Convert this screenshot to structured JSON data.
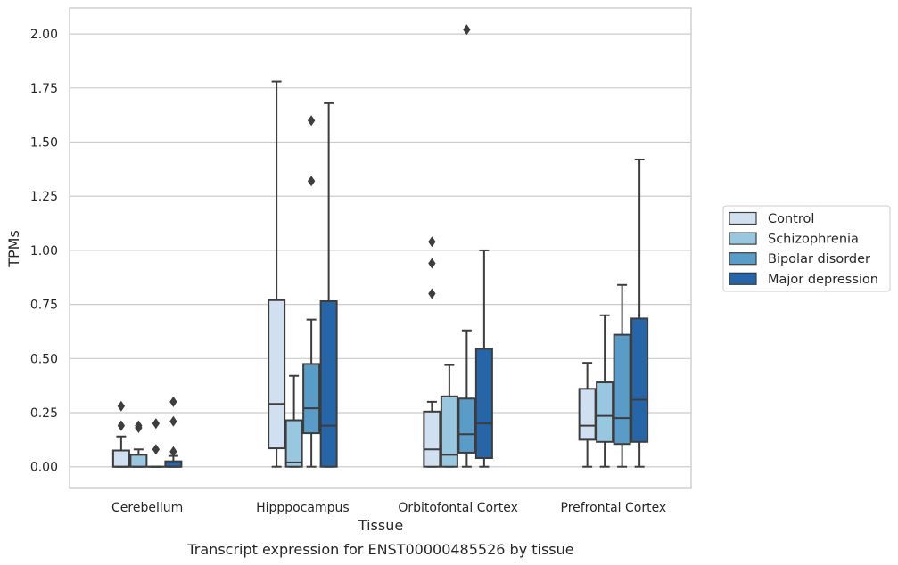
{
  "chart_data": {
    "type": "box",
    "title": "Transcript expression for ENST00000485526 by tissue",
    "xlabel": "Tissue",
    "ylabel": "TPMs",
    "ylim": [
      -0.1,
      2.12
    ],
    "yticks": [
      "0.00",
      "0.25",
      "0.50",
      "0.75",
      "1.00",
      "1.25",
      "1.50",
      "1.75",
      "2.00"
    ],
    "ytick_values": [
      0,
      0.25,
      0.5,
      0.75,
      1.0,
      1.25,
      1.5,
      1.75,
      2.0
    ],
    "grid": "horizontal",
    "legend_position": "right",
    "categories": [
      "Cerebellum",
      "Hipppocampus",
      "Orbitofontal Cortex",
      "Prefrontal Cortex"
    ],
    "series": [
      {
        "name": "Control",
        "color": "#d0e0f0",
        "boxes": [
          {
            "q1": 0.0,
            "median": 0.0,
            "q3": 0.075,
            "whisker_low": 0.0,
            "whisker_high": 0.14,
            "outliers": [
              0.19,
              0.28
            ]
          },
          {
            "q1": 0.085,
            "median": 0.29,
            "q3": 0.77,
            "whisker_low": 0.0,
            "whisker_high": 1.78,
            "outliers": []
          },
          {
            "q1": 0.0,
            "median": 0.08,
            "q3": 0.255,
            "whisker_low": 0.0,
            "whisker_high": 0.3,
            "outliers": [
              0.8,
              0.94,
              1.04
            ]
          },
          {
            "q1": 0.125,
            "median": 0.19,
            "q3": 0.36,
            "whisker_low": 0.0,
            "whisker_high": 0.48,
            "outliers": []
          }
        ]
      },
      {
        "name": "Schizophrenia",
        "color": "#9ac7e0",
        "boxes": [
          {
            "q1": 0.0,
            "median": 0.0,
            "q3": 0.055,
            "whisker_low": 0.0,
            "whisker_high": 0.08,
            "outliers": [
              0.18,
              0.19
            ]
          },
          {
            "q1": 0.0,
            "median": 0.02,
            "q3": 0.215,
            "whisker_low": 0.0,
            "whisker_high": 0.42,
            "outliers": []
          },
          {
            "q1": 0.0,
            "median": 0.055,
            "q3": 0.325,
            "whisker_low": 0.0,
            "whisker_high": 0.47,
            "outliers": []
          },
          {
            "q1": 0.115,
            "median": 0.235,
            "q3": 0.39,
            "whisker_low": 0.0,
            "whisker_high": 0.7,
            "outliers": []
          }
        ]
      },
      {
        "name": "Bipolar disorder",
        "color": "#5a9cc8",
        "boxes": [
          {
            "q1": 0.0,
            "median": 0.0,
            "q3": 0.0,
            "whisker_low": 0.0,
            "whisker_high": 0.0,
            "outliers": [
              0.08,
              0.2
            ]
          },
          {
            "q1": 0.155,
            "median": 0.27,
            "q3": 0.475,
            "whisker_low": 0.0,
            "whisker_high": 0.68,
            "outliers": [
              1.32,
              1.6
            ]
          },
          {
            "q1": 0.065,
            "median": 0.15,
            "q3": 0.315,
            "whisker_low": 0.0,
            "whisker_high": 0.63,
            "outliers": [
              2.02
            ]
          },
          {
            "q1": 0.105,
            "median": 0.225,
            "q3": 0.61,
            "whisker_low": 0.0,
            "whisker_high": 0.84,
            "outliers": []
          }
        ]
      },
      {
        "name": "Major depression",
        "color": "#2666a8",
        "boxes": [
          {
            "q1": 0.0,
            "median": 0.0,
            "q3": 0.025,
            "whisker_low": 0.0,
            "whisker_high": 0.05,
            "outliers": [
              0.07,
              0.21,
              0.3
            ]
          },
          {
            "q1": 0.0,
            "median": 0.19,
            "q3": 0.765,
            "whisker_low": 0.0,
            "whisker_high": 1.68,
            "outliers": []
          },
          {
            "q1": 0.04,
            "median": 0.2,
            "q3": 0.545,
            "whisker_low": 0.0,
            "whisker_high": 1.0,
            "outliers": []
          },
          {
            "q1": 0.115,
            "median": 0.31,
            "q3": 0.685,
            "whisker_low": 0.0,
            "whisker_high": 1.42,
            "outliers": []
          }
        ]
      }
    ]
  }
}
